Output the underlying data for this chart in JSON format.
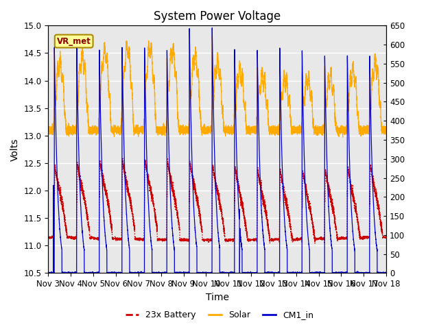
{
  "title": "System Power Voltage",
  "xlabel": "Time",
  "ylabel": "Volts",
  "ylim_left": [
    10.5,
    15.0
  ],
  "ylim_right": [
    0,
    650
  ],
  "yticks_left": [
    10.5,
    11.0,
    11.5,
    12.0,
    12.5,
    13.0,
    13.5,
    14.0,
    14.5,
    15.0
  ],
  "yticks_right": [
    0,
    50,
    100,
    150,
    200,
    250,
    300,
    350,
    400,
    450,
    500,
    550,
    600,
    650
  ],
  "xtick_labels": [
    "Nov 3",
    "Nov 4",
    "Nov 5",
    "Nov 6",
    "Nov 7",
    "Nov 8",
    "Nov 9",
    "Nov 10",
    "Nov 11",
    "Nov 12",
    "Nov 13",
    "Nov 14",
    "Nov 15",
    "Nov 16",
    "Nov 17",
    "Nov 18"
  ],
  "xlim": [
    3,
    18
  ],
  "background_color": "#ffffff",
  "plot_bg_color": "#e8e8e8",
  "plot_bg_color2": "#d4d4d4",
  "grid_color": "#ffffff",
  "legend_labels": [
    "23x Battery",
    "Solar",
    "CM1_in"
  ],
  "legend_colors": [
    "#cc0000",
    "#ffaa00",
    "#0000cc"
  ],
  "vr_met_label": "VR_met",
  "vr_met_bg": "#ffff99",
  "vr_met_border": "#aa8800",
  "title_fontsize": 12,
  "label_fontsize": 10,
  "tick_fontsize": 8.5
}
